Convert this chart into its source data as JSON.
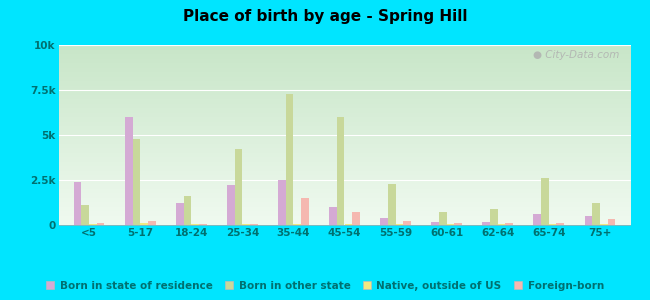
{
  "title": "Place of birth by age - Spring Hill",
  "categories": [
    "<5",
    "5-17",
    "18-24",
    "25-34",
    "35-44",
    "45-54",
    "55-59",
    "60-61",
    "62-64",
    "65-74",
    "75+"
  ],
  "series": {
    "Born in state of residence": [
      2400,
      6000,
      1200,
      2200,
      2500,
      1000,
      400,
      150,
      150,
      600,
      500
    ],
    "Born in other state": [
      1100,
      4800,
      1600,
      4200,
      7300,
      6000,
      2300,
      700,
      900,
      2600,
      1200
    ],
    "Native, outside of US": [
      50,
      100,
      50,
      50,
      50,
      50,
      50,
      50,
      50,
      50,
      50
    ],
    "Foreign-born": [
      100,
      250,
      80,
      80,
      1500,
      700,
      200,
      100,
      100,
      100,
      350
    ]
  },
  "colors": {
    "Born in state of residence": "#d4aad4",
    "Born in other state": "#c8d89a",
    "Native, outside of US": "#f0e882",
    "Foreign-born": "#f5b8b0"
  },
  "ylim": [
    0,
    10000
  ],
  "yticks": [
    0,
    2500,
    5000,
    7500,
    10000
  ],
  "ytick_labels": [
    "0",
    "2.5k",
    "5k",
    "7.5k",
    "10k"
  ],
  "bg_top": "#f0faf0",
  "bg_bottom": "#c8ecc8",
  "figure_background": "#00e5ff",
  "bar_width": 0.15,
  "watermark": "City-Data.com"
}
